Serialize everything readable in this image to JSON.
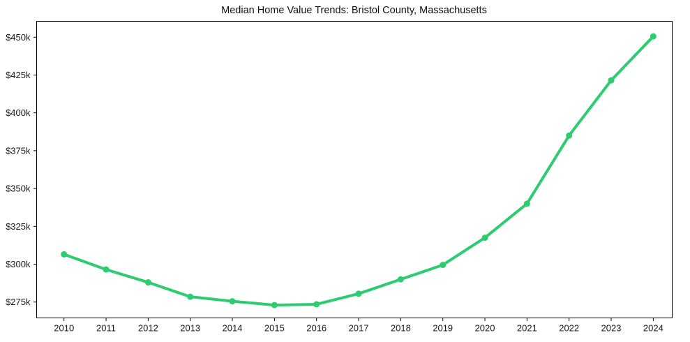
{
  "figure": {
    "background": "#ffffff",
    "frame_color": "#000000",
    "tick_color": "#000000",
    "text_color": "#1a1a1a"
  },
  "chart_data": {
    "type": "line",
    "title": "Median Home Value Trends: Bristol County, Massachusetts",
    "xlabel": "",
    "ylabel": "",
    "grid": false,
    "legend": "none",
    "marker": "circle",
    "line_width": 4,
    "marker_radius": 4.5,
    "x": [
      2010,
      2011,
      2012,
      2013,
      2014,
      2015,
      2016,
      2017,
      2018,
      2019,
      2020,
      2021,
      2022,
      2023,
      2024
    ],
    "x_tick_labels": [
      "2010",
      "2011",
      "2012",
      "2013",
      "2014",
      "2015",
      "2016",
      "2017",
      "2018",
      "2019",
      "2020",
      "2021",
      "2022",
      "2023",
      "2024"
    ],
    "series": [
      {
        "name": "Median Home Value",
        "color": "#2ecc71",
        "values": [
          306500,
          296500,
          288000,
          278500,
          275500,
          273000,
          273500,
          280500,
          290000,
          299500,
          317500,
          340000,
          385000,
          421500,
          450500
        ]
      }
    ],
    "y_ticks": [
      275000,
      300000,
      325000,
      350000,
      375000,
      400000,
      425000,
      450000
    ],
    "y_tick_labels": [
      "$275k",
      "$300k",
      "$325k",
      "$350k",
      "$375k",
      "$400k",
      "$425k",
      "$450k"
    ],
    "xlim": [
      2009.35,
      2024.45
    ],
    "ylim": [
      264500,
      460500
    ]
  }
}
